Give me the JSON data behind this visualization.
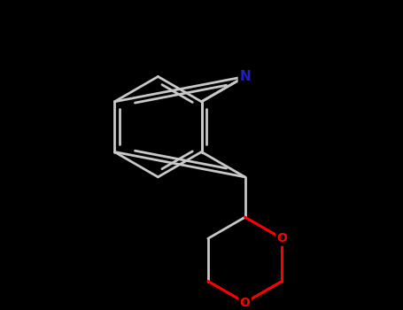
{
  "background_color": "#000000",
  "bond_color": "#c8c8c8",
  "nitrogen_color": "#2020bb",
  "oxygen_color": "#ff0000",
  "bond_width": 2.0,
  "fig_width": 4.55,
  "fig_height": 3.5,
  "dpi": 100,
  "xlim": [
    -2.5,
    2.5
  ],
  "ylim": [
    -3.5,
    2.5
  ],
  "N_label": "N",
  "O_label": "O"
}
